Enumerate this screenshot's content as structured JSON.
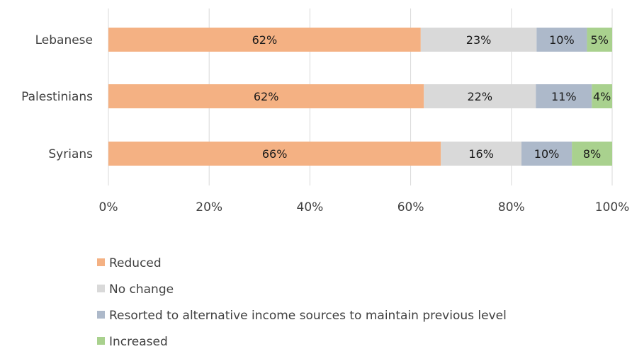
{
  "chart_data": {
    "type": "bar",
    "orientation": "horizontal",
    "stacked": true,
    "percent_stacked": true,
    "categories": [
      "Lebanese",
      "Palestinians",
      "Syrians"
    ],
    "series": [
      {
        "name": "Reduced",
        "color": "#F4B183",
        "values": [
          62,
          62,
          66
        ],
        "labels": [
          "62%",
          "62%",
          "66%"
        ]
      },
      {
        "name": "No change",
        "color": "#D9D9D9",
        "values": [
          23,
          22,
          16
        ],
        "labels": [
          "23%",
          "22%",
          "16%"
        ]
      },
      {
        "name": "Resorted to alternative income sources to maintain previous level",
        "color": "#ADB9CA",
        "values": [
          10,
          11,
          10
        ],
        "labels": [
          "10%",
          "11%",
          "10%"
        ]
      },
      {
        "name": "Increased",
        "color": "#A9D18E",
        "values": [
          5,
          4,
          8
        ],
        "labels": [
          "5%",
          "4%",
          "8%"
        ]
      }
    ],
    "xlim": [
      0,
      100
    ],
    "x_ticks": [
      0,
      20,
      40,
      60,
      80,
      100
    ],
    "x_tick_labels": [
      "0%",
      "20%",
      "40%",
      "60%",
      "80%",
      "100%"
    ],
    "grid": true,
    "legend_position": "bottom-left"
  }
}
